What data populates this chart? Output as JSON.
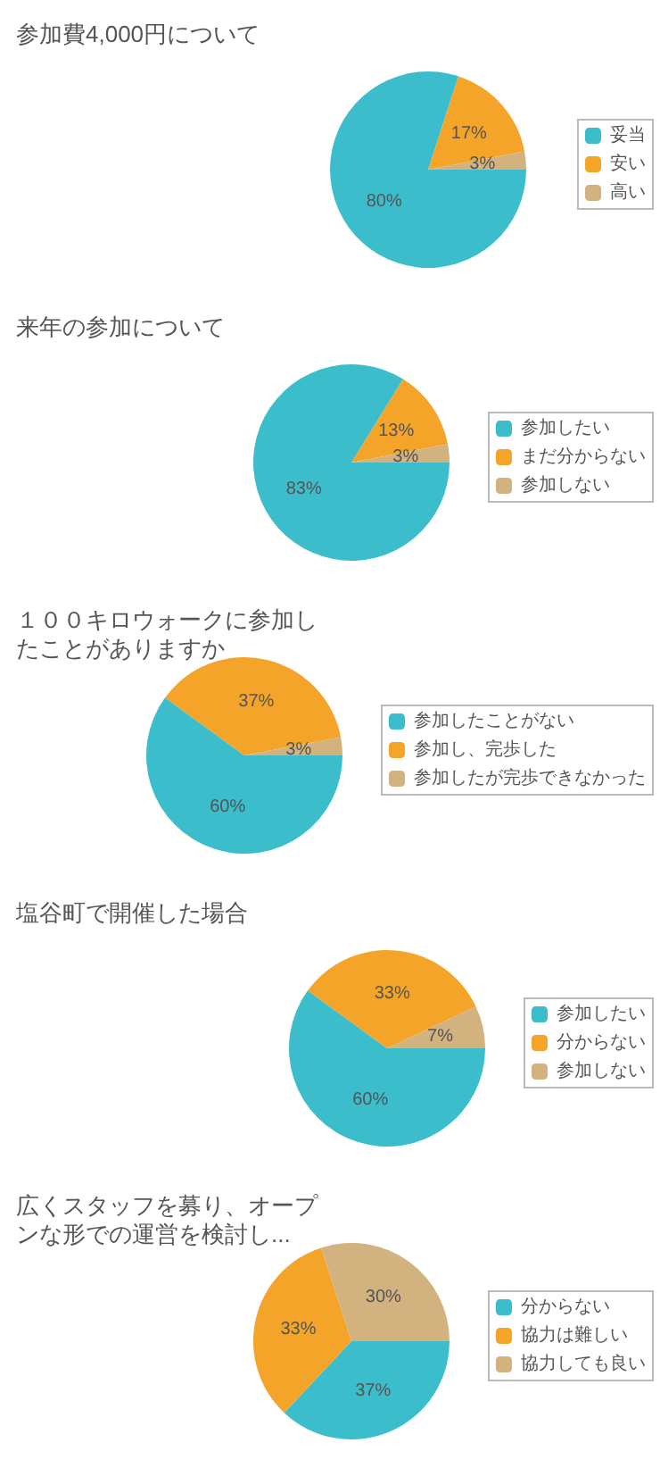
{
  "chart_data": [
    {
      "type": "pie",
      "title": "参加費4,000円について",
      "categories": [
        "妥当",
        "安い",
        "高い"
      ],
      "values": [
        80,
        17,
        3
      ],
      "value_labels": [
        "80%",
        "17%",
        "3%"
      ],
      "colors": [
        "#3bbdcc",
        "#f4a428",
        "#d2b27e"
      ],
      "legend": "right"
    },
    {
      "type": "pie",
      "title": "来年の参加について",
      "categories": [
        "参加したい",
        "まだ分からない",
        "参加しない"
      ],
      "values": [
        83,
        13,
        3
      ],
      "value_labels": [
        "83%",
        "13%",
        "3%"
      ],
      "colors": [
        "#3bbdcc",
        "#f4a428",
        "#d2b27e"
      ],
      "legend": "right"
    },
    {
      "type": "pie",
      "title": "１００キロウォークに参加したことがありますか",
      "categories": [
        "参加したことがない",
        "参加し、完歩した",
        "参加したが完歩できなかった"
      ],
      "values": [
        60,
        37,
        3
      ],
      "value_labels": [
        "60%",
        "37%",
        "3%"
      ],
      "colors": [
        "#3bbdcc",
        "#f4a428",
        "#d2b27e"
      ],
      "legend": "right"
    },
    {
      "type": "pie",
      "title": "塩谷町で開催した場合",
      "categories": [
        "参加したい",
        "分からない",
        "参加しない"
      ],
      "values": [
        60,
        33,
        7
      ],
      "value_labels": [
        "60%",
        "33%",
        "7%"
      ],
      "colors": [
        "#3bbdcc",
        "#f4a428",
        "#d2b27e"
      ],
      "legend": "right"
    },
    {
      "type": "pie",
      "title": "広くスタッフを募り、オープンな形での運営を検討し...",
      "categories": [
        "分からない",
        "協力は難しい",
        "協力しても良い"
      ],
      "values": [
        37,
        33,
        30
      ],
      "value_labels": [
        "37%",
        "33%",
        "30%"
      ],
      "colors": [
        "#3bbdcc",
        "#f4a428",
        "#d2b27e"
      ],
      "legend": "right"
    }
  ]
}
